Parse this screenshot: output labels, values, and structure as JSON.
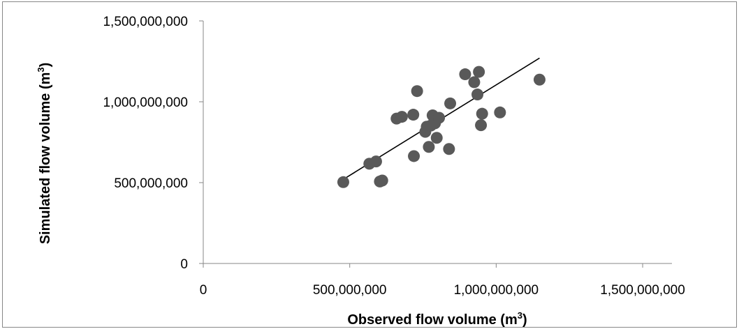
{
  "chart_data": {
    "type": "scatter",
    "xlabel": "Observed flow volume (m",
    "xlabel_sup": "3",
    "xlabel_end": ")",
    "ylabel": "Simulated flow volume (m",
    "ylabel_sup": "3",
    "ylabel_end": ")",
    "xlim": [
      0,
      1600000000
    ],
    "ylim": [
      0,
      1500000000
    ],
    "x_ticks": [
      0,
      500000000,
      1000000000,
      1500000000
    ],
    "y_ticks": [
      0,
      500000000,
      1000000000,
      1500000000
    ],
    "x_tick_labels": [
      "0",
      "500,000,000",
      "1,000,000,000",
      "1,500,000,000"
    ],
    "y_tick_labels": [
      "0",
      "500,000,000",
      "1,000,000,000",
      "1,500,000,000"
    ],
    "grid": false,
    "legend": "none",
    "marker_color": "#595959",
    "trendline_color": "#000000",
    "trendline": {
      "x": [
        478000000,
        1148000000
      ],
      "y": [
        520000000,
        1270000000
      ]
    },
    "points": [
      {
        "x": 478000000,
        "y": 503000000
      },
      {
        "x": 567000000,
        "y": 617000000
      },
      {
        "x": 590000000,
        "y": 631000000
      },
      {
        "x": 603000000,
        "y": 507000000
      },
      {
        "x": 611000000,
        "y": 513000000
      },
      {
        "x": 660000000,
        "y": 896000000
      },
      {
        "x": 678000000,
        "y": 907000000
      },
      {
        "x": 717000000,
        "y": 920000000
      },
      {
        "x": 730000000,
        "y": 1066000000
      },
      {
        "x": 719000000,
        "y": 664000000
      },
      {
        "x": 758000000,
        "y": 814000000
      },
      {
        "x": 763000000,
        "y": 846000000
      },
      {
        "x": 770000000,
        "y": 721000000
      },
      {
        "x": 777000000,
        "y": 853000000
      },
      {
        "x": 783000000,
        "y": 916000000
      },
      {
        "x": 791000000,
        "y": 867000000
      },
      {
        "x": 797000000,
        "y": 777000000
      },
      {
        "x": 805000000,
        "y": 901000000
      },
      {
        "x": 839000000,
        "y": 708000000
      },
      {
        "x": 843000000,
        "y": 990000000
      },
      {
        "x": 894000000,
        "y": 1170000000
      },
      {
        "x": 925000000,
        "y": 1121000000
      },
      {
        "x": 936000000,
        "y": 1045000000
      },
      {
        "x": 941000000,
        "y": 1185000000
      },
      {
        "x": 948000000,
        "y": 855000000
      },
      {
        "x": 952000000,
        "y": 926000000
      },
      {
        "x": 1013000000,
        "y": 934000000
      },
      {
        "x": 1148000000,
        "y": 1137000000
      }
    ]
  }
}
